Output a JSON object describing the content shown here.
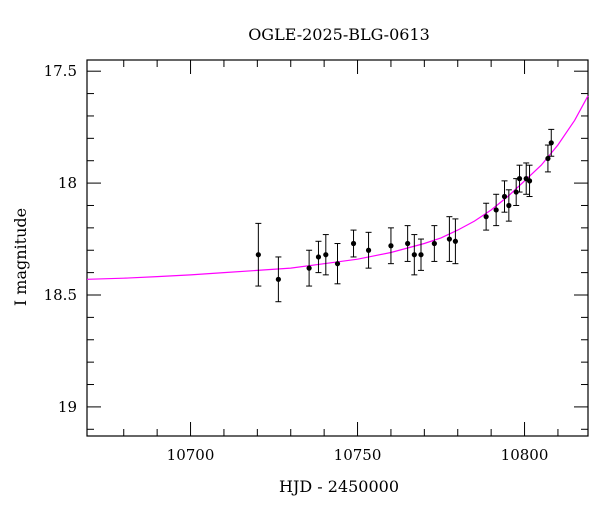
{
  "chart_data": {
    "type": "scatter",
    "title": "OGLE-2025-BLG-0613",
    "xlabel": "HJD - 2450000",
    "ylabel": "I magnitude",
    "xlim": [
      10669,
      10819
    ],
    "ylim": [
      19.13,
      17.45
    ],
    "y_inverted": true,
    "x_ticks": [
      10700,
      10750,
      10800
    ],
    "x_tick_labels": [
      "10700",
      "10750",
      "10800"
    ],
    "y_ticks": [
      17.5,
      18,
      18.5,
      19
    ],
    "y_tick_labels": [
      "17.5",
      "18",
      "18.5",
      "19"
    ],
    "grid": false,
    "colors": {
      "model": "#ff00ff",
      "points": "#000000"
    },
    "series": [
      {
        "kind": "points",
        "x": [
          10720.3,
          10726.3,
          10735.5,
          10738.3,
          10740.5,
          10744.0,
          10748.8,
          10753.3,
          10760.0,
          10765.0,
          10767.0,
          10769.0,
          10773.0,
          10777.5,
          10779.3,
          10788.5,
          10791.5,
          10794.0,
          10795.3,
          10797.5,
          10798.5,
          10800.5,
          10801.5,
          10807.0,
          10808.0
        ],
        "y": [
          18.32,
          18.43,
          18.38,
          18.33,
          18.32,
          18.36,
          18.27,
          18.3,
          18.28,
          18.27,
          18.32,
          18.32,
          18.27,
          18.25,
          18.26,
          18.15,
          18.12,
          18.06,
          18.1,
          18.04,
          17.98,
          17.98,
          17.99,
          17.89,
          17.82
        ],
        "yerr": [
          0.14,
          0.1,
          0.08,
          0.07,
          0.09,
          0.09,
          0.06,
          0.08,
          0.08,
          0.08,
          0.09,
          0.07,
          0.08,
          0.1,
          0.1,
          0.06,
          0.07,
          0.07,
          0.07,
          0.06,
          0.06,
          0.07,
          0.07,
          0.06,
          0.06
        ]
      },
      {
        "kind": "model-curve",
        "x": [
          10669,
          10680,
          10690,
          10700,
          10710,
          10720,
          10730,
          10740,
          10750,
          10760,
          10770,
          10775,
          10780,
          10785,
          10790,
          10795,
          10800,
          10805,
          10810,
          10815,
          10819
        ],
        "y": [
          18.43,
          18.425,
          18.418,
          18.41,
          18.4,
          18.39,
          18.38,
          18.36,
          18.34,
          18.31,
          18.27,
          18.245,
          18.21,
          18.17,
          18.12,
          18.06,
          17.99,
          17.92,
          17.83,
          17.72,
          17.61
        ]
      }
    ]
  }
}
